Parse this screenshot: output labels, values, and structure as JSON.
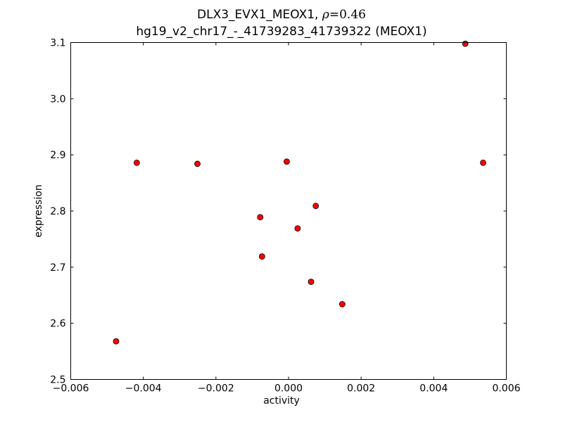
{
  "chart_data": {
    "type": "scatter",
    "title_line1_prefix": "DLX3_EVX1_MEOX1, ",
    "title_rho_symbol": "ρ",
    "title_rho_value": "=0.46",
    "title_line2": "hg19_v2_chr17_-_41739283_41739322 (MEOX1)",
    "xlabel": "activity",
    "ylabel": "expression",
    "xlim": [
      -0.006,
      0.006
    ],
    "ylim": [
      2.5,
      3.1
    ],
    "xticks": [
      -0.006,
      -0.004,
      -0.002,
      0.0,
      0.002,
      0.004,
      0.006
    ],
    "xtick_labels": [
      "−0.006",
      "−0.004",
      "−0.002",
      "0.000",
      "0.002",
      "0.004",
      "0.006"
    ],
    "yticks": [
      2.5,
      2.6,
      2.7,
      2.8,
      2.9,
      3.0,
      3.1
    ],
    "ytick_labels": [
      "2.5",
      "2.6",
      "2.7",
      "2.8",
      "2.9",
      "3.0",
      "3.1"
    ],
    "grid": false,
    "marker_color": "#ff0000",
    "marker_edge": "#000000",
    "points": [
      {
        "x": -0.00475,
        "y": 2.568
      },
      {
        "x": -0.00418,
        "y": 2.886
      },
      {
        "x": -0.00251,
        "y": 2.884
      },
      {
        "x": -0.00078,
        "y": 2.789
      },
      {
        "x": -0.00073,
        "y": 2.719
      },
      {
        "x": -5e-05,
        "y": 2.888
      },
      {
        "x": 0.00025,
        "y": 2.769
      },
      {
        "x": 0.00062,
        "y": 2.674
      },
      {
        "x": 0.00075,
        "y": 2.809
      },
      {
        "x": 0.00148,
        "y": 2.634
      },
      {
        "x": 0.00487,
        "y": 3.098
      },
      {
        "x": 0.00536,
        "y": 2.886
      }
    ]
  }
}
